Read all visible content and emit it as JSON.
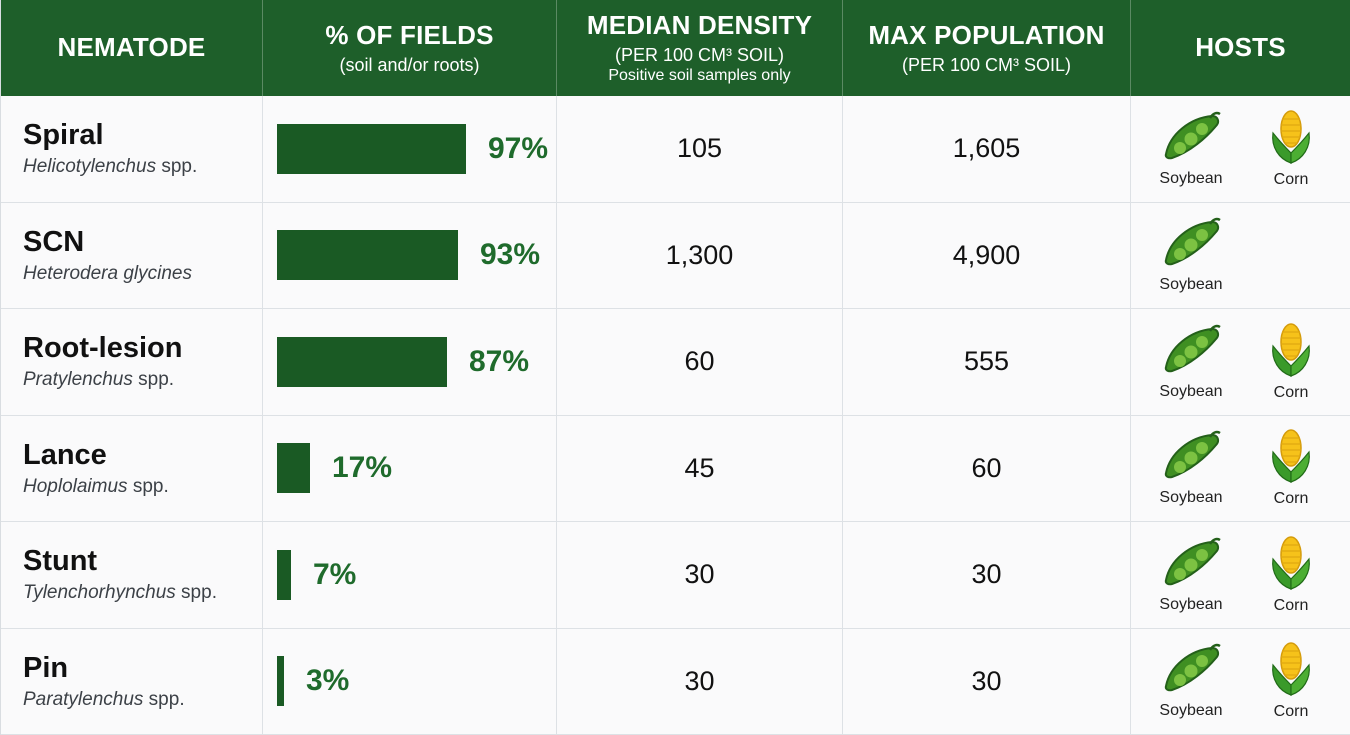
{
  "headers": {
    "nematode": {
      "main": "NEMATODE"
    },
    "fields": {
      "main": "% OF FIELDS",
      "sub": "(soil and/or roots)"
    },
    "median": {
      "main": "MEDIAN DENSITY",
      "sub": "(PER 100 CM³ SOIL)",
      "sub2": "Positive soil samples only"
    },
    "max": {
      "main": "MAX POPULATION",
      "sub": "(PER 100 CM³ SOIL)"
    },
    "hosts": {
      "main": "HOSTS"
    }
  },
  "host_labels": {
    "soybean": "Soybean",
    "corn": "Corn"
  },
  "colors": {
    "header_bg": "#1e5f2a",
    "bar": "#1a5a24",
    "pct_text": "#1f6b2c"
  },
  "icons": {
    "soybean": "soybean-pod-icon",
    "corn": "corn-cob-icon"
  },
  "rows": [
    {
      "common": "Spiral",
      "sci_italic": "Helicotylenchus",
      "sci_rest": " spp.",
      "percent": 97,
      "percent_label": "97%",
      "median": "105",
      "max": "1,605",
      "soybean": true,
      "corn": true
    },
    {
      "common": "SCN",
      "sci_italic": "Heterodera glycines",
      "sci_rest": "",
      "percent": 93,
      "percent_label": "93%",
      "median": "1,300",
      "max": "4,900",
      "soybean": true,
      "corn": false
    },
    {
      "common": "Root-lesion",
      "sci_italic": "Pratylenchus",
      "sci_rest": " spp.",
      "percent": 87,
      "percent_label": "87%",
      "median": "60",
      "max": "555",
      "soybean": true,
      "corn": true
    },
    {
      "common": "Lance",
      "sci_italic": "Hoplolaimus",
      "sci_rest": " spp.",
      "percent": 17,
      "percent_label": "17%",
      "median": "45",
      "max": "60",
      "soybean": true,
      "corn": true
    },
    {
      "common": "Stunt",
      "sci_italic": "Tylenchorhynchus",
      "sci_rest": " spp.",
      "percent": 7,
      "percent_label": "7%",
      "median": "30",
      "max": "30",
      "soybean": true,
      "corn": true
    },
    {
      "common": "Pin",
      "sci_italic": "Paratylenchus",
      "sci_rest": " spp.",
      "percent": 3,
      "percent_label": "3%",
      "median": "30",
      "max": "30",
      "soybean": true,
      "corn": true
    }
  ],
  "chart_data": {
    "type": "table",
    "columns": [
      "NEMATODE",
      "% OF FIELDS",
      "MEDIAN DENSITY",
      "MAX POPULATION",
      "HOSTS"
    ],
    "categories": [
      "Spiral",
      "SCN",
      "Root-lesion",
      "Lance",
      "Stunt",
      "Pin"
    ],
    "series": [
      {
        "name": "% OF FIELDS",
        "values": [
          97,
          93,
          87,
          17,
          7,
          3
        ]
      },
      {
        "name": "MEDIAN DENSITY",
        "values": [
          105,
          1300,
          60,
          45,
          30,
          30
        ]
      },
      {
        "name": "MAX POPULATION",
        "values": [
          1605,
          4900,
          555,
          60,
          30,
          30
        ]
      }
    ],
    "hosts": [
      [
        "Soybean",
        "Corn"
      ],
      [
        "Soybean"
      ],
      [
        "Soybean",
        "Corn"
      ],
      [
        "Soybean",
        "Corn"
      ],
      [
        "Soybean",
        "Corn"
      ],
      [
        "Soybean",
        "Corn"
      ]
    ]
  }
}
